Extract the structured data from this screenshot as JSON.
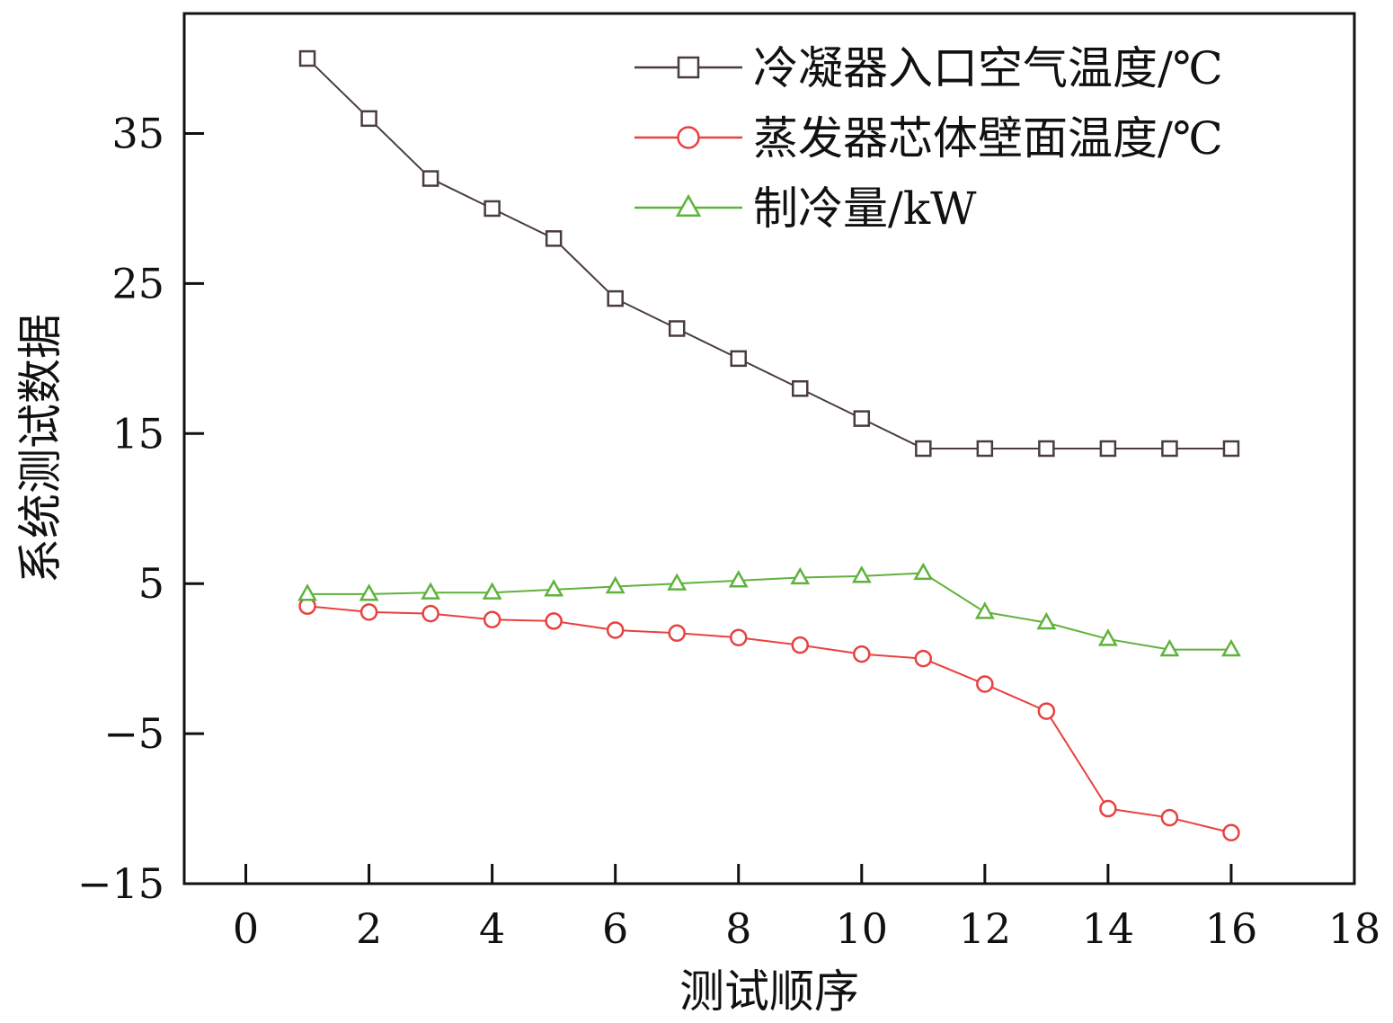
{
  "chart_data": {
    "type": "line",
    "title": "",
    "xlabel": "测试顺序",
    "ylabel": "系统测试数据",
    "xlim": [
      -1,
      18
    ],
    "ylim": [
      -15,
      43
    ],
    "xticks": [
      0,
      2,
      4,
      6,
      8,
      10,
      12,
      14,
      16,
      18
    ],
    "yticks": [
      -15,
      -5,
      5,
      15,
      25,
      35
    ],
    "ytick_labels": [
      "−15",
      "−5",
      "5",
      "15",
      "25",
      "35"
    ],
    "grid": false,
    "legend_position": "top-right",
    "x": [
      1,
      2,
      3,
      4,
      5,
      6,
      7,
      8,
      9,
      10,
      11,
      12,
      13,
      14,
      15,
      16
    ],
    "series": [
      {
        "name": "冷凝器入口空气温度/℃",
        "color": "#4a3c3c",
        "marker": "square",
        "values": [
          40,
          36,
          32,
          30,
          28,
          24,
          22,
          20,
          18,
          16,
          14,
          14,
          14,
          14,
          14,
          14
        ]
      },
      {
        "name": "蒸发器芯体壁面温度/℃",
        "color": "#e8413f",
        "marker": "circle",
        "values": [
          3.5,
          3.1,
          3.0,
          2.6,
          2.5,
          1.9,
          1.7,
          1.4,
          0.9,
          0.3,
          0,
          -1.7,
          -3.5,
          -10.0,
          -10.6,
          -11.6
        ]
      },
      {
        "name": "制冷量/kW",
        "color": "#5fb23c",
        "marker": "triangle",
        "values": [
          4.3,
          4.3,
          4.4,
          4.4,
          4.6,
          4.8,
          5.0,
          5.2,
          5.4,
          5.5,
          5.7,
          3.1,
          2.4,
          1.3,
          0.6,
          0.6
        ]
      }
    ]
  }
}
